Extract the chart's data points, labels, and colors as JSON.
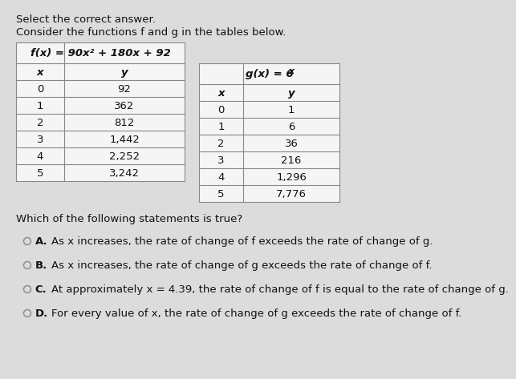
{
  "title_top": "Select the correct answer.",
  "subtitle": "Consider the functions f and g in the tables below.",
  "table_f_header_plain": "f(x) = 90x",
  "table_f_header_sup": "2",
  "table_f_header_rest": " + 180x + 92",
  "table_f_data": [
    [
      "0",
      "92"
    ],
    [
      "1",
      "362"
    ],
    [
      "2",
      "812"
    ],
    [
      "3",
      "1,442"
    ],
    [
      "4",
      "2,252"
    ],
    [
      "5",
      "3,242"
    ]
  ],
  "table_g_header_plain": "g(x) = 6",
  "table_g_header_sup": "x",
  "table_g_data": [
    [
      "0",
      "1"
    ],
    [
      "1",
      "6"
    ],
    [
      "2",
      "36"
    ],
    [
      "3",
      "216"
    ],
    [
      "4",
      "1,296"
    ],
    [
      "5",
      "7,776"
    ]
  ],
  "question": "Which of the following statements is true?",
  "options": [
    [
      "A.",
      "As x increases, the rate of change of f exceeds the rate of change of g."
    ],
    [
      "B.",
      "As x increases, the rate of change of g exceeds the rate of change of f."
    ],
    [
      "C.",
      "At approximately x = 4.39, the rate of change of f is equal to the rate of change of g."
    ],
    [
      "D.",
      "For every value of x, the rate of change of g exceeds the rate of change of f."
    ]
  ],
  "bg_color": "#dcdcdc",
  "table_bg": "#f5f5f5",
  "border_color": "#888888",
  "text_color": "#111111",
  "font_size": 9.5
}
